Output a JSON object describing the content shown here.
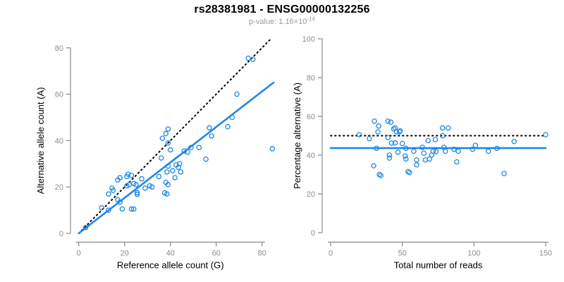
{
  "header": {
    "title": "rs28381981 - ENSG00000132256",
    "pvalue_prefix": "p-value: 1.16×10",
    "pvalue_exponent": "-14"
  },
  "colors": {
    "accent_blue": "#1E87E5",
    "axis_gray": "#8a8a8a",
    "tick_label_gray": "#8c8c8c",
    "title_black": "#000000",
    "subtitle_gray": "#9a9a9a"
  },
  "chart_data": [
    {
      "type": "scatter",
      "panel": "left",
      "xlabel": "Reference allele count (G)",
      "ylabel": "Alternative allele count (A)",
      "xlim": [
        0,
        85
      ],
      "ylim": [
        0,
        84
      ],
      "xticks": [
        0,
        20,
        40,
        60,
        80
      ],
      "yticks": [
        0,
        20,
        40,
        60,
        80
      ],
      "grid": false,
      "legend": "none",
      "point_color": "#1E87E5",
      "lines": [
        {
          "name": "identity-line",
          "style": "dotted",
          "color": "#000000",
          "x1": 0,
          "y1": 0,
          "x2": 84,
          "y2": 84
        },
        {
          "name": "fit-line",
          "style": "solid",
          "color": "#1E87E5",
          "x1": 0,
          "y1": 0,
          "x2": 85,
          "y2": 65
        }
      ],
      "points": [
        [
          3,
          2.5
        ],
        [
          10,
          11
        ],
        [
          13,
          10
        ],
        [
          17,
          14.5
        ],
        [
          18,
          13.5
        ],
        [
          19,
          10.5
        ],
        [
          23,
          10.5
        ],
        [
          24,
          10.5
        ],
        [
          13,
          17
        ],
        [
          14.5,
          19.5
        ],
        [
          15,
          18.5
        ],
        [
          17,
          23
        ],
        [
          18,
          24
        ],
        [
          21,
          24.5
        ],
        [
          21.5,
          25.5
        ],
        [
          23,
          25
        ],
        [
          21,
          20.5
        ],
        [
          22,
          21
        ],
        [
          24,
          21.5
        ],
        [
          25,
          21
        ],
        [
          25.5,
          17.5
        ],
        [
          25.5,
          16.8
        ],
        [
          27.5,
          23.5
        ],
        [
          29,
          19.5
        ],
        [
          31,
          20.5
        ],
        [
          32,
          20
        ],
        [
          35,
          24.5
        ],
        [
          37.5,
          17.5
        ],
        [
          38.5,
          17
        ],
        [
          38.5,
          26.5
        ],
        [
          39,
          29
        ],
        [
          38,
          22
        ],
        [
          39,
          21
        ],
        [
          42,
          24
        ],
        [
          41,
          27
        ],
        [
          42.5,
          29.5
        ],
        [
          43.5,
          28.5
        ],
        [
          44,
          30
        ],
        [
          44.5,
          26.5
        ],
        [
          36,
          32.5
        ],
        [
          36.5,
          41
        ],
        [
          38,
          43
        ],
        [
          39,
          45
        ],
        [
          39,
          39
        ],
        [
          40,
          36
        ],
        [
          46,
          35.5
        ],
        [
          47.5,
          35
        ],
        [
          49,
          37
        ],
        [
          52.5,
          37
        ],
        [
          55.5,
          32
        ],
        [
          57,
          45.5
        ],
        [
          58,
          42
        ],
        [
          65,
          46
        ],
        [
          67,
          50
        ],
        [
          69,
          60
        ],
        [
          74,
          75.5
        ],
        [
          76,
          75
        ],
        [
          84.5,
          36.5
        ]
      ]
    },
    {
      "type": "scatter",
      "panel": "right",
      "xlabel": "Total number of reads",
      "ylabel": "Percentage alternative (A)",
      "xlim": [
        0,
        151
      ],
      "ylim": [
        0,
        100
      ],
      "xticks": [
        0,
        50,
        100,
        150
      ],
      "yticks": [
        0,
        20,
        40,
        60,
        80,
        100
      ],
      "grid": false,
      "legend": "none",
      "point_color": "#1E87E5",
      "lines": [
        {
          "name": "expected-50pct-line",
          "style": "dotted",
          "color": "#000000",
          "x1": 0,
          "y1": 50,
          "x2": 150,
          "y2": 50
        },
        {
          "name": "mean-percentage-line",
          "style": "solid",
          "color": "#1E87E5",
          "x1": 0,
          "y1": 43.6,
          "x2": 150,
          "y2": 43.6
        }
      ],
      "points": [
        [
          20,
          50.5
        ],
        [
          27,
          48.5
        ],
        [
          30.5,
          57.5
        ],
        [
          30,
          34.5
        ],
        [
          33.5,
          55
        ],
        [
          33,
          52
        ],
        [
          32,
          43.5
        ],
        [
          34,
          30
        ],
        [
          35,
          29.5
        ],
        [
          40,
          57.5
        ],
        [
          42,
          57
        ],
        [
          40,
          49
        ],
        [
          41,
          40
        ],
        [
          41,
          38.5
        ],
        [
          42.5,
          46.2
        ],
        [
          44,
          53.5
        ],
        [
          45,
          54
        ],
        [
          46,
          52
        ],
        [
          45,
          46.3
        ],
        [
          47,
          41.5
        ],
        [
          48,
          52
        ],
        [
          48.5,
          52.5
        ],
        [
          50,
          46
        ],
        [
          52,
          39.5
        ],
        [
          52.5,
          38
        ],
        [
          52.5,
          43.5
        ],
        [
          54,
          31.5
        ],
        [
          55,
          31
        ],
        [
          58,
          42
        ],
        [
          60,
          37.5
        ],
        [
          60,
          35
        ],
        [
          64,
          44
        ],
        [
          65,
          41
        ],
        [
          66,
          37.5
        ],
        [
          68,
          47.5
        ],
        [
          69,
          38
        ],
        [
          70.5,
          40
        ],
        [
          71.5,
          42
        ],
        [
          73,
          48
        ],
        [
          73.5,
          41.8
        ],
        [
          78,
          54
        ],
        [
          78,
          50
        ],
        [
          79,
          44
        ],
        [
          80,
          42
        ],
        [
          82,
          54
        ],
        [
          86,
          43
        ],
        [
          88,
          36.5
        ],
        [
          89,
          42
        ],
        [
          99,
          43
        ],
        [
          101,
          45
        ],
        [
          110,
          42
        ],
        [
          116,
          43.5
        ],
        [
          121,
          30.5
        ],
        [
          128,
          47
        ],
        [
          150,
          50.5
        ]
      ]
    }
  ]
}
